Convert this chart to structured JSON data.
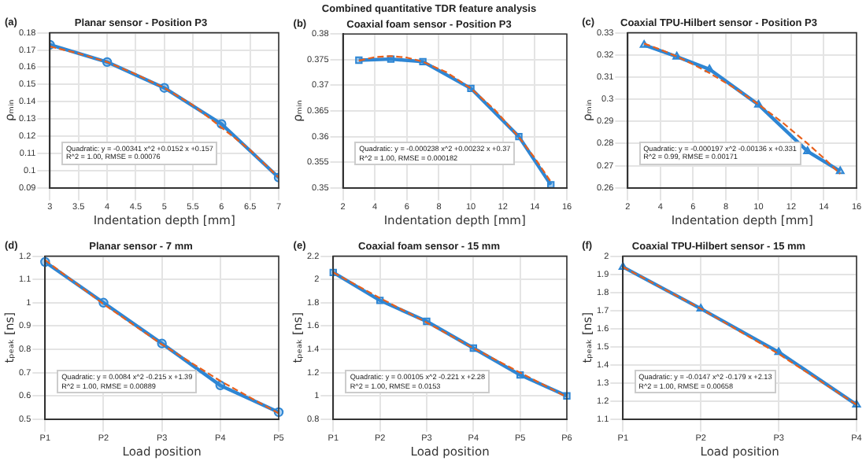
{
  "chart_data": [
    {
      "type": "line",
      "title": "Planar sensor - Position P3",
      "xlabel": "Indentation depth [mm]",
      "ylabel": "ρₘᵢₙ",
      "xlim": [
        3,
        7
      ],
      "xticks": [
        3,
        3.5,
        4,
        4.5,
        5,
        5.5,
        6,
        6.5,
        7
      ],
      "ylim": [
        0.09,
        0.18
      ],
      "yticks": [
        0.09,
        0.1,
        0.11,
        0.12,
        0.13,
        0.14,
        0.15,
        0.16,
        0.17,
        0.18
      ],
      "grid": true,
      "annotations": [
        "(a)",
        "Quadratic: y = -0.00341 x^2 +0.0152 x +0.157",
        "R^2 = 1.00, RMSE = 0.00076"
      ],
      "series": [
        {
          "color": "#2e86d4",
          "marker": "circle",
          "line_style": "solid",
          "x": [
            3,
            4,
            5,
            6,
            7
          ],
          "values": [
            0.173,
            0.163,
            0.148,
            0.127,
            0.096
          ]
        },
        {
          "color": "#e8601c",
          "marker": "none",
          "line_style": "dashed",
          "x": [
            3,
            3.5,
            4,
            4.5,
            5,
            5.5,
            6,
            6.5,
            7
          ],
          "values": [
            0.172,
            0.168,
            0.163,
            0.156,
            0.148,
            0.138,
            0.125,
            0.112,
            0.096
          ]
        }
      ]
    },
    {
      "type": "line",
      "title": "Combined quantitative TDR feature analysis",
      "subtitle": "Coaxial foam sensor - Position P3",
      "xlabel": "Indentation depth [mm]",
      "ylabel": "ρₘᵢₙ",
      "xlim": [
        2,
        16
      ],
      "xticks": [
        2,
        4,
        6,
        8,
        10,
        12,
        14,
        16
      ],
      "ylim": [
        0.35,
        0.38
      ],
      "yticks": [
        0.35,
        0.355,
        0.36,
        0.365,
        0.37,
        0.375,
        0.38
      ],
      "grid": true,
      "annotations": [
        "(b)",
        "Quadratic: y = -0.000238 x^2 +0.00232 x +0.37",
        "R^2 = 1.00, RMSE = 0.000182"
      ],
      "series": [
        {
          "color": "#2e86d4",
          "marker": "square",
          "line_style": "solid",
          "x": [
            3,
            5,
            7,
            10,
            13,
            15
          ],
          "values": [
            0.3749,
            0.3751,
            0.3746,
            0.3694,
            0.36,
            0.3506
          ]
        },
        {
          "color": "#e8601c",
          "marker": "none",
          "line_style": "dashed",
          "x": [
            3,
            4,
            5,
            6,
            7,
            8.5,
            10,
            11.5,
            13,
            14,
            15
          ],
          "values": [
            0.3748,
            0.3755,
            0.3757,
            0.3754,
            0.3746,
            0.3725,
            0.3694,
            0.3652,
            0.3599,
            0.3558,
            0.3512
          ]
        }
      ]
    },
    {
      "type": "line",
      "title": "Coaxial TPU-Hilbert sensor - Position P3",
      "xlabel": "Indentation depth [mm]",
      "ylabel": "ρₘᵢₙ",
      "xlim": [
        2,
        16
      ],
      "xticks": [
        2,
        4,
        6,
        8,
        10,
        12,
        14,
        16
      ],
      "ylim": [
        0.26,
        0.33
      ],
      "yticks": [
        0.26,
        0.27,
        0.28,
        0.29,
        0.3,
        0.31,
        0.32,
        0.33
      ],
      "grid": true,
      "annotations": [
        "(c)",
        "Quadratic: y = -0.000197 x^2 -0.00136 x +0.331",
        "R^2 = 0.99, RMSE = 0.00171"
      ],
      "series": [
        {
          "color": "#2e86d4",
          "marker": "triangle",
          "line_style": "solid",
          "x": [
            3,
            5,
            7,
            10,
            13,
            15
          ],
          "values": [
            0.3245,
            0.3192,
            0.3135,
            0.2975,
            0.2765,
            0.2675
          ]
        },
        {
          "color": "#e8601c",
          "marker": "none",
          "line_style": "dashed",
          "x": [
            3,
            4,
            5,
            6,
            7,
            8.5,
            10,
            11.5,
            13,
            14,
            15
          ],
          "values": [
            0.3251,
            0.3224,
            0.3193,
            0.3157,
            0.3118,
            0.3052,
            0.2977,
            0.2893,
            0.28,
            0.2734,
            0.2663
          ]
        }
      ]
    },
    {
      "type": "line",
      "title": "Planar sensor - 7 mm",
      "xlabel": "Load position",
      "ylabel": "tₚₑₐₖ [ns]",
      "categories": [
        "P1",
        "P2",
        "P3",
        "P4",
        "P5"
      ],
      "ylim": [
        0.5,
        1.2
      ],
      "yticks": [
        0.5,
        0.6,
        0.7,
        0.8,
        0.9,
        1,
        1.1,
        1.2
      ],
      "grid": true,
      "annotations": [
        "(d)",
        "Quadratic: y = 0.0084 x^2 -0.215 x +1.39",
        "R^2 = 1.00, RMSE = 0.00889"
      ],
      "series": [
        {
          "color": "#2e86d4",
          "marker": "circle",
          "line_style": "solid",
          "values": [
            1.175,
            1.0,
            0.825,
            0.645,
            0.53
          ]
        },
        {
          "color": "#e8601c",
          "marker": "none",
          "line_style": "dashed",
          "values": [
            1.183,
            0.994,
            0.821,
            0.664,
            0.525
          ]
        }
      ]
    },
    {
      "type": "line",
      "title": "Coaxial foam sensor - 15 mm",
      "xlabel": "Load position",
      "ylabel": "tₚₑₐₖ [ns]",
      "categories": [
        "P1",
        "P2",
        "P3",
        "P4",
        "P5",
        "P6"
      ],
      "ylim": [
        0.8,
        2.2
      ],
      "yticks": [
        0.8,
        1,
        1.2,
        1.4,
        1.6,
        1.8,
        2,
        2.2
      ],
      "grid": true,
      "annotations": [
        "(e)",
        "Quadratic: y = 0.00105 x^2 -0.221 x +2.28",
        "R^2 = 1.00, RMSE = 0.0153"
      ],
      "series": [
        {
          "color": "#2e86d4",
          "marker": "square",
          "line_style": "solid",
          "values": [
            2.06,
            1.82,
            1.64,
            1.41,
            1.18,
            1.0
          ]
        },
        {
          "color": "#e8601c",
          "marker": "none",
          "line_style": "dashed",
          "values": [
            2.06,
            1.84,
            1.63,
            1.41,
            1.2,
            0.99
          ]
        }
      ]
    },
    {
      "type": "line",
      "title": "Coaxial TPU-Hilbert sensor - 15 mm",
      "xlabel": "Load position",
      "ylabel": "tₚₑₐₖ [ns]",
      "categories": [
        "P1",
        "P2",
        "P3",
        "P4"
      ],
      "ylim": [
        1.1,
        2
      ],
      "yticks": [
        1.1,
        1.2,
        1.3,
        1.4,
        1.5,
        1.6,
        1.7,
        1.8,
        1.9,
        2
      ],
      "grid": true,
      "annotations": [
        "(f)",
        "Quadratic: y = -0.0147 x^2 -0.179 x +2.13",
        "R^2 = 1.00, RMSE = 0.00658"
      ],
      "series": [
        {
          "color": "#2e86d4",
          "marker": "triangle",
          "line_style": "solid",
          "values": [
            1.94,
            1.71,
            1.47,
            1.18
          ]
        },
        {
          "color": "#e8601c",
          "marker": "none",
          "line_style": "dashed",
          "values": [
            1.94,
            1.71,
            1.46,
            1.18
          ]
        }
      ]
    }
  ]
}
